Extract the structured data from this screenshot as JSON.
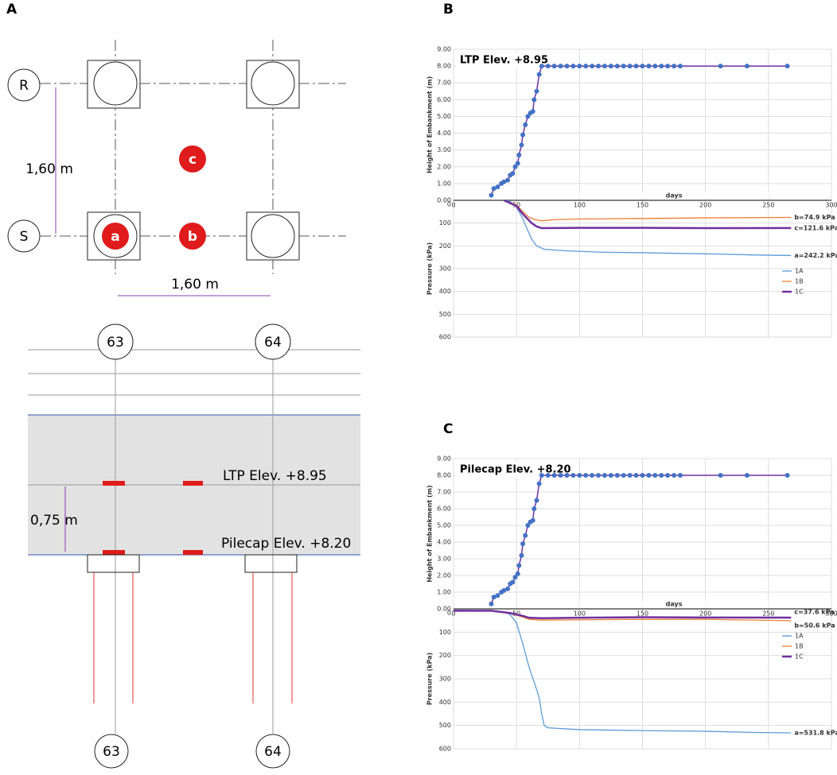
{
  "panel_labels": [
    "A",
    "B",
    "C"
  ],
  "diagram": {
    "rows": [
      "R",
      "S"
    ],
    "spacing_vertical": "1,60 m",
    "spacing_horizontal": "1,60 m",
    "points": [
      "a",
      "b",
      "c"
    ],
    "axes_top": [
      "63",
      "64"
    ],
    "axes_bottom": [
      "63",
      "64"
    ],
    "ltp_label": "LTP Elev. +8.95",
    "pilecap_label": "Pilecap Elev. +8.20",
    "thickness": "0,75 m"
  },
  "chart_data": [
    {
      "type": "line",
      "title": "LTP Elev. +8.95",
      "x_label": "days",
      "xlim": [
        0,
        300
      ],
      "xticks": [
        0,
        50,
        100,
        150,
        200,
        250,
        300
      ],
      "y_label": "Height of Embankment (m)",
      "ylim": [
        0,
        9
      ],
      "yticks": [
        {
          "value": 0,
          "label": "0.00"
        },
        {
          "value": 1,
          "label": "1.00"
        },
        {
          "value": 2,
          "label": "2.00"
        },
        {
          "value": 3,
          "label": "3.00"
        },
        {
          "value": 4,
          "label": "4.00"
        },
        {
          "value": 5,
          "label": "5.00"
        },
        {
          "value": 6,
          "label": "6.00"
        },
        {
          "value": 7,
          "label": "7.00"
        },
        {
          "value": 8,
          "label": "8.00"
        },
        {
          "value": 9,
          "label": "9.00"
        }
      ],
      "height": {
        "color": "#4472c4",
        "line_color": "#7030a0",
        "x": [
          30,
          32,
          35,
          38,
          40,
          43,
          45,
          47,
          49,
          51,
          52,
          54,
          55,
          57,
          59,
          61,
          63,
          64,
          66,
          68,
          70,
          75,
          80,
          85,
          90,
          95,
          100,
          105,
          110,
          115,
          120,
          125,
          130,
          135,
          140,
          145,
          150,
          155,
          160,
          165,
          170,
          175,
          180,
          212,
          233,
          265
        ],
        "values": [
          0.3,
          0.7,
          0.8,
          1.0,
          1.1,
          1.2,
          1.5,
          1.6,
          2.0,
          2.2,
          2.7,
          3.3,
          3.9,
          4.5,
          5.0,
          5.2,
          5.3,
          6.0,
          6.5,
          7.5,
          8,
          8,
          8,
          8,
          8,
          8,
          8,
          8,
          8,
          8,
          8,
          8,
          8,
          8,
          8,
          8,
          8,
          8,
          8,
          8,
          8,
          8,
          8,
          8,
          8,
          8
        ]
      },
      "y2_label": "Pressure (kPa)",
      "y2lim": [
        0,
        600
      ],
      "y2ticks": [
        0,
        100,
        200,
        300,
        400,
        500,
        600
      ],
      "series": [
        {
          "name": "1A",
          "color": "#5b9bd5",
          "x": [
            40,
            45,
            50,
            55,
            58,
            62,
            66,
            72,
            90,
            120,
            150,
            180,
            210,
            240,
            268
          ],
          "values": [
            0,
            5,
            30,
            80,
            120,
            170,
            200,
            215,
            222,
            228,
            230,
            233,
            236,
            240,
            242.2
          ],
          "end_label": "a=242.2 kPa"
        },
        {
          "name": "1B",
          "color": "#ed7d31",
          "x": [
            40,
            50,
            55,
            60,
            65,
            70,
            80,
            100,
            150,
            200,
            268
          ],
          "values": [
            0,
            20,
            50,
            75,
            85,
            90,
            85,
            82,
            80,
            77,
            74.9
          ],
          "end_label": "b=74.9 kPa"
        },
        {
          "name": "1C",
          "color": "#7030a0",
          "x": [
            40,
            50,
            55,
            62,
            66,
            70,
            100,
            150,
            200,
            268
          ],
          "values": [
            0,
            25,
            60,
            100,
            115,
            122,
            121,
            121,
            122,
            121.6
          ],
          "end_label": "c=121.6 kPa"
        }
      ]
    },
    {
      "type": "line",
      "title": "Pilecap Elev. +8.20",
      "x_label": "days",
      "xlim": [
        0,
        300
      ],
      "xticks": [
        0,
        50,
        100,
        150,
        200,
        250,
        300
      ],
      "y_label": "Height of Embankment (m)",
      "ylim": [
        0,
        9
      ],
      "yticks": [
        {
          "value": 0,
          "label": "0.00"
        },
        {
          "value": 1,
          "label": "1.00"
        },
        {
          "value": 2,
          "label": "2.00"
        },
        {
          "value": 3,
          "label": "3.00"
        },
        {
          "value": 4,
          "label": "4.00"
        },
        {
          "value": 5,
          "label": "5.00"
        },
        {
          "value": 6,
          "label": "6.00"
        },
        {
          "value": 7,
          "label": "7.00"
        },
        {
          "value": 8,
          "label": "8.00"
        },
        {
          "value": 9,
          "label": "9.00"
        }
      ],
      "height": {
        "color": "#4472c4",
        "line_color": "#7030a0",
        "x": [
          30,
          32,
          35,
          38,
          40,
          43,
          45,
          47,
          49,
          51,
          52,
          54,
          55,
          57,
          59,
          61,
          63,
          64,
          66,
          68,
          70,
          75,
          80,
          85,
          90,
          95,
          100,
          105,
          110,
          115,
          120,
          125,
          130,
          135,
          140,
          145,
          150,
          155,
          160,
          165,
          170,
          175,
          180,
          212,
          233,
          265
        ],
        "values": [
          0.3,
          0.7,
          0.8,
          1.0,
          1.1,
          1.2,
          1.5,
          1.6,
          1.9,
          2.1,
          2.6,
          3.2,
          3.9,
          4.4,
          5.0,
          5.2,
          5.3,
          6.0,
          6.5,
          7.5,
          8,
          8,
          8,
          8,
          8,
          8,
          8,
          8,
          8,
          8,
          8,
          8,
          8,
          8,
          8,
          8,
          8,
          8,
          8,
          8,
          8,
          8,
          8,
          8,
          8,
          8
        ]
      },
      "y2_label": "Pressure (kPa)",
      "y2lim": [
        0,
        600
      ],
      "y2ticks": [
        0,
        100,
        200,
        300,
        400,
        500,
        600
      ],
      "series": [
        {
          "name": "1A",
          "color": "#5b9bd5",
          "x": [
            0,
            30,
            40,
            45,
            50,
            55,
            60,
            65,
            68,
            70,
            72,
            75,
            100,
            150,
            200,
            240,
            268
          ],
          "values": [
            5,
            8,
            12,
            25,
            60,
            150,
            250,
            330,
            380,
            450,
            500,
            510,
            518,
            522,
            525,
            530,
            531.8
          ],
          "end_label": "a=531.8 kPa"
        },
        {
          "name": "1B",
          "color": "#ed7d31",
          "x": [
            0,
            30,
            45,
            55,
            60,
            70,
            100,
            150,
            200,
            268
          ],
          "values": [
            8,
            8,
            20,
            35,
            45,
            48,
            47,
            45,
            45,
            50.6
          ],
          "end_label": "b=50.6 kPa"
        },
        {
          "name": "1C",
          "color": "#7030a0",
          "x": [
            0,
            30,
            45,
            55,
            60,
            70,
            100,
            150,
            200,
            268
          ],
          "values": [
            8,
            8,
            18,
            30,
            38,
            40,
            38,
            36,
            37,
            37.6
          ],
          "end_label": "c=37.6 kPa"
        }
      ]
    }
  ]
}
